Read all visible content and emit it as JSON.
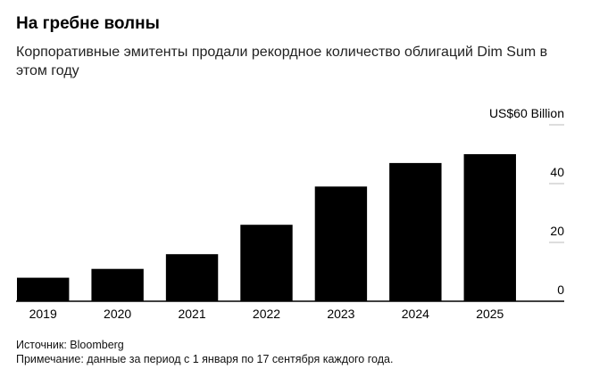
{
  "header": {
    "title": "На гребне волны",
    "subtitle": "Корпоративные эмитенты продали рекордное количество облигаций Dim Sum в этом году"
  },
  "footer": {
    "source": "Источник: Bloomberg",
    "note": "Примечание: данные за период с 1 января по 17 сентября каждого года."
  },
  "chart_data": {
    "type": "bar",
    "title": "На гребне волны",
    "subtitle": "Корпоративные эмитенты продали рекордное количество облигаций Dim Sum в этом году",
    "categories": [
      "2019",
      "2020",
      "2021",
      "2022",
      "2023",
      "2024",
      "2025"
    ],
    "values": [
      8,
      11,
      16,
      26,
      39,
      47,
      50
    ],
    "y_ticks": [
      0,
      20,
      40,
      60
    ],
    "y_tick_labels": [
      "0",
      "20",
      "40",
      "US$60 Billion"
    ],
    "ylim": [
      0,
      60
    ],
    "y_axis_side": "right",
    "grid": true,
    "bar_color": "#000000"
  }
}
